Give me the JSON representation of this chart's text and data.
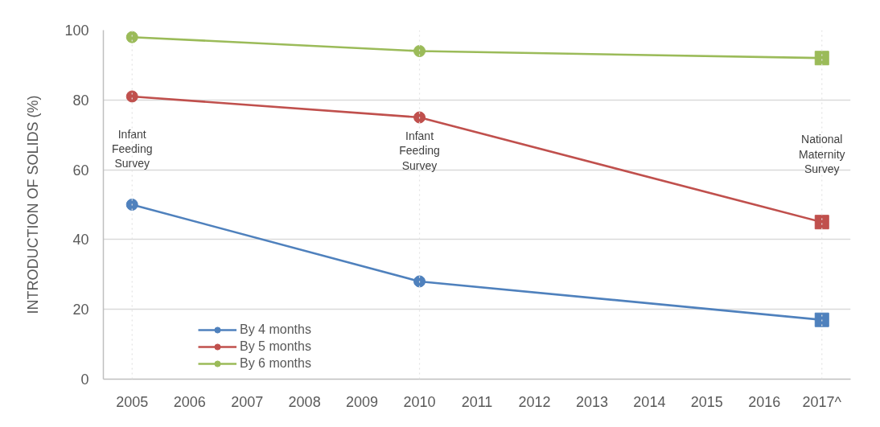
{
  "chart_data": {
    "type": "line",
    "ylabel": "INTRODUCTION OF SOLIDS (%)",
    "categories": [
      "2005",
      "2006",
      "2007",
      "2008",
      "2009",
      "2010",
      "2011",
      "2012",
      "2013",
      "2014",
      "2015",
      "2016",
      "2017^"
    ],
    "series": [
      {
        "name": "By 4 months",
        "color": "#4f81bd",
        "values": [
          50,
          null,
          null,
          null,
          null,
          28,
          null,
          null,
          null,
          null,
          null,
          null,
          17
        ]
      },
      {
        "name": "By 5 months",
        "color": "#c0504d",
        "values": [
          81,
          null,
          null,
          null,
          null,
          75,
          null,
          null,
          null,
          null,
          null,
          null,
          45
        ]
      },
      {
        "name": "By 6 months",
        "color": "#9bbb59",
        "values": [
          98,
          null,
          null,
          null,
          null,
          94,
          null,
          null,
          null,
          null,
          null,
          null,
          92
        ]
      },
      {
        "type": "scatter",
        "marker": "square",
        "color": "#4f81bd",
        "values": [
          null,
          null,
          null,
          null,
          null,
          null,
          null,
          null,
          null,
          null,
          null,
          null,
          17
        ]
      },
      {
        "type": "scatter",
        "marker": "square",
        "color": "#c0504d",
        "values": [
          null,
          null,
          null,
          null,
          null,
          null,
          null,
          null,
          null,
          null,
          null,
          null,
          45
        ]
      },
      {
        "type": "scatter",
        "marker": "square",
        "color": "#9bbb59",
        "values": [
          null,
          null,
          null,
          null,
          null,
          null,
          null,
          null,
          null,
          null,
          null,
          null,
          92
        ]
      }
    ],
    "ylim": [
      0,
      100
    ],
    "yticks": [
      0,
      20,
      40,
      60,
      80,
      100
    ],
    "grid": "y",
    "legend": "bottom left",
    "marker": "circle",
    "line_style": "solid",
    "ref_lines": [
      {
        "axis": "x",
        "value": "2005",
        "color": "#e3e3e3",
        "line_style": "dotted"
      },
      {
        "axis": "x",
        "value": "2010",
        "color": "#e3e3e3",
        "line_style": "dotted"
      },
      {
        "axis": "x",
        "value": "2017^",
        "color": "#e3e3e3",
        "line_style": "dotted"
      }
    ],
    "annotations": [
      {
        "text": "Infant Feeding Survey",
        "x": "2005",
        "y": 66
      },
      {
        "text": "Infant Feeding Survey",
        "x": "2010",
        "y": 65.5
      },
      {
        "text": "National Maternity Survey",
        "x": "2017^",
        "y": 64.5
      }
    ]
  }
}
